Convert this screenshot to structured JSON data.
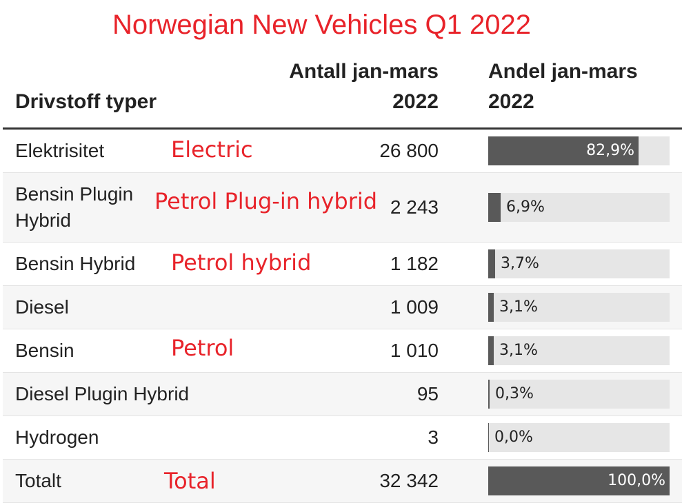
{
  "title": "Norwegian New Vehicles Q1 2022",
  "headers": {
    "col1": "Drivstoff typer",
    "col2_line1": "Antall jan-mars",
    "col2_line2": "2022",
    "col3_line1": "Andel jan-mars",
    "col3_line2": "2022"
  },
  "colors": {
    "title": "#e8232a",
    "annotation": "#e8232a",
    "bar_fill": "#595959",
    "bar_track": "#e6e6e6"
  },
  "chart_data": {
    "type": "table",
    "title": "Norwegian New Vehicles Q1 2022",
    "columns": [
      "Drivstoff typer",
      "Antall jan-mars 2022",
      "Andel jan-mars 2022"
    ],
    "rows": [
      {
        "label_lines": [
          "Elektrisitet"
        ],
        "annotation": "Electric",
        "count": "26 800",
        "share": 82.9,
        "share_label": "82,9%"
      },
      {
        "label_lines": [
          "Bensin Plugin",
          "Hybrid"
        ],
        "annotation": "Petrol Plug-in hybrid",
        "count": "2 243",
        "share": 6.9,
        "share_label": "6,9%"
      },
      {
        "label_lines": [
          "Bensin Hybrid"
        ],
        "annotation": "Petrol hybrid",
        "count": "1 182",
        "share": 3.7,
        "share_label": "3,7%"
      },
      {
        "label_lines": [
          "Diesel"
        ],
        "annotation": "",
        "count": "1 009",
        "share": 3.1,
        "share_label": "3,1%"
      },
      {
        "label_lines": [
          "Bensin"
        ],
        "annotation": "Petrol",
        "count": "1 010",
        "share": 3.1,
        "share_label": "3,1%"
      },
      {
        "label_lines": [
          "Diesel Plugin Hybrid"
        ],
        "annotation": "",
        "count": "95",
        "share": 0.3,
        "share_label": "0,3%"
      },
      {
        "label_lines": [
          "Hydrogen"
        ],
        "annotation": "",
        "count": "3",
        "share": 0.0,
        "share_label": "0,0%"
      },
      {
        "label_lines": [
          "Totalt"
        ],
        "annotation": "Total",
        "count": "32 342",
        "share": 100.0,
        "share_label": "100,0%"
      }
    ]
  }
}
